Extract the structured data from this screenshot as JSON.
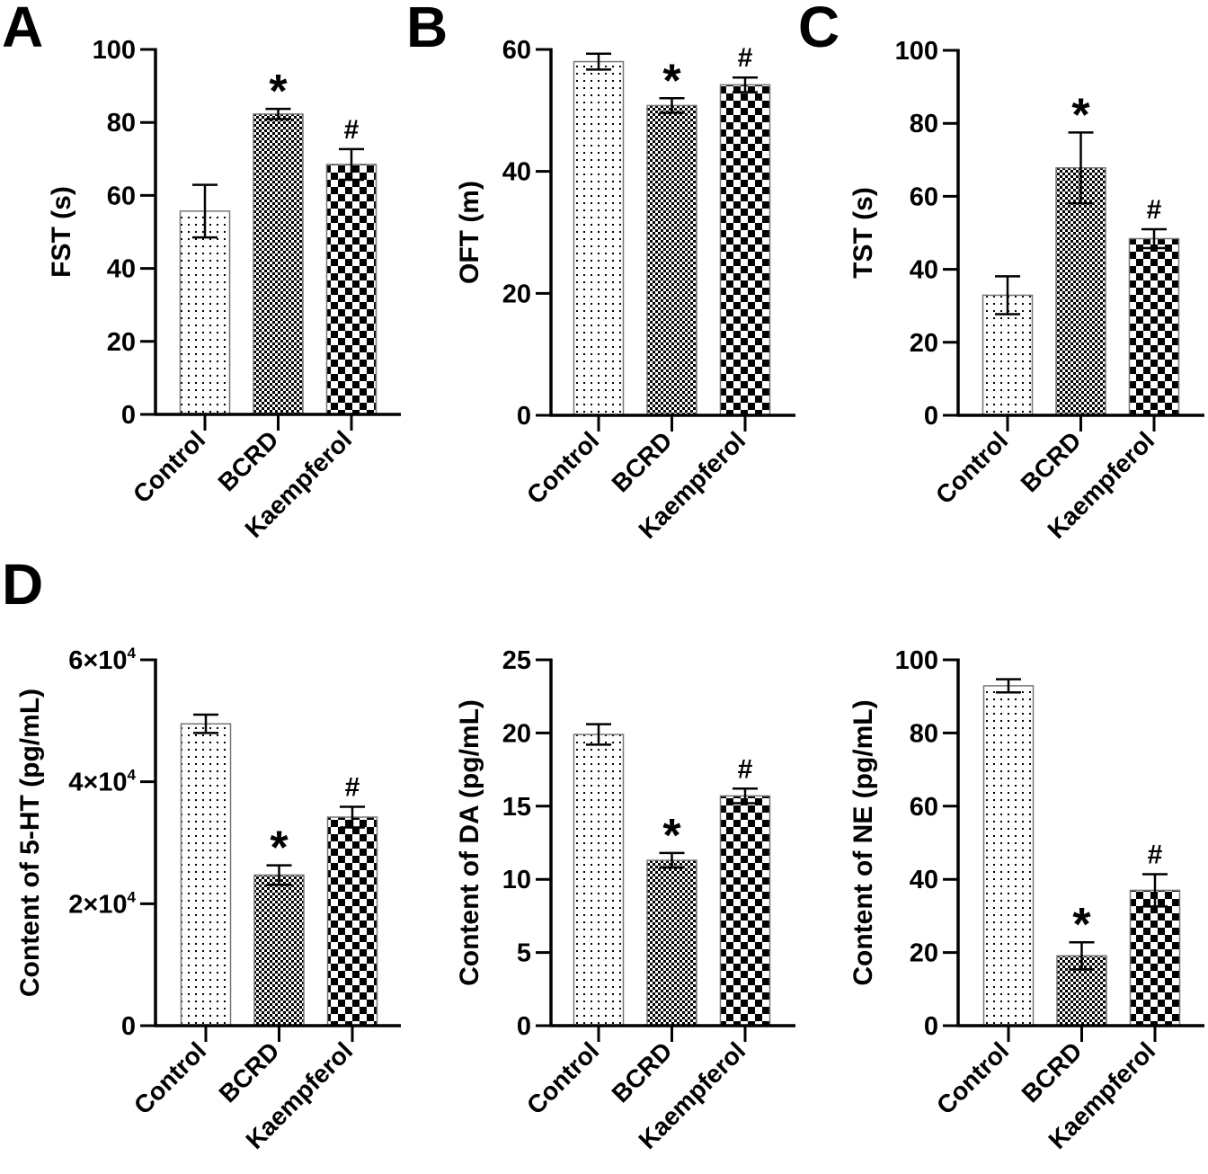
{
  "figure": {
    "panel_letters": [
      "A",
      "B",
      "C",
      "D"
    ]
  },
  "chart_data": [
    {
      "id": "A",
      "type": "bar",
      "title": "",
      "ylabel": "FST (s)",
      "xlabel": "",
      "categories": [
        "Control",
        "BCRD",
        "Kaempferol"
      ],
      "values": [
        55.7,
        82.3,
        68.5
      ],
      "error": [
        7.2,
        1.4,
        4.2
      ],
      "significance": [
        "",
        "*",
        "#"
      ],
      "patterns": [
        "dots",
        "fine-checker",
        "coarse-checker"
      ],
      "ylim": [
        0,
        100
      ],
      "yticks": [
        0,
        20,
        40,
        60,
        80,
        100
      ],
      "ytick_labels": [
        "0",
        "20",
        "40",
        "60",
        "80",
        "100"
      ],
      "grid": false
    },
    {
      "id": "B",
      "type": "bar",
      "title": "",
      "ylabel": "OFT (m)",
      "xlabel": "",
      "categories": [
        "Control",
        "BCRD",
        "Kaempferol"
      ],
      "values": [
        58.0,
        50.8,
        54.2
      ],
      "error": [
        1.3,
        1.2,
        1.2
      ],
      "significance": [
        "",
        "*",
        "#"
      ],
      "patterns": [
        "dots",
        "fine-checker",
        "coarse-checker"
      ],
      "ylim": [
        0,
        60
      ],
      "yticks": [
        0,
        20,
        40,
        60
      ],
      "ytick_labels": [
        "0",
        "20",
        "40",
        "60"
      ],
      "grid": false
    },
    {
      "id": "C",
      "type": "bar",
      "title": "",
      "ylabel": "TST (s)",
      "xlabel": "",
      "categories": [
        "Control",
        "BCRD",
        "Kaempferol"
      ],
      "values": [
        32.9,
        67.8,
        48.4
      ],
      "error": [
        5.2,
        9.7,
        2.6
      ],
      "significance": [
        "",
        "*",
        "#"
      ],
      "patterns": [
        "dots",
        "fine-checker",
        "coarse-checker"
      ],
      "ylim": [
        0,
        100
      ],
      "yticks": [
        0,
        20,
        40,
        60,
        80,
        100
      ],
      "ytick_labels": [
        "0",
        "20",
        "40",
        "60",
        "80",
        "100"
      ],
      "grid": false
    },
    {
      "id": "D-5HT",
      "type": "bar",
      "title": "",
      "ylabel": "Content of 5-HT (pg/mL)",
      "xlabel": "",
      "categories": [
        "Control",
        "BCRD",
        "Kaempferol"
      ],
      "values": [
        49500,
        24700,
        34200
      ],
      "error": [
        1500,
        1600,
        1700
      ],
      "significance": [
        "",
        "*",
        "#"
      ],
      "patterns": [
        "dots",
        "fine-checker",
        "coarse-checker"
      ],
      "ylim": [
        0,
        60000
      ],
      "yticks": [
        0,
        20000,
        40000,
        60000
      ],
      "ytick_labels": [
        {
          "base": "0",
          "sup": ""
        },
        {
          "base": "2×10",
          "sup": "4"
        },
        {
          "base": "4×10",
          "sup": "4"
        },
        {
          "base": "6×10",
          "sup": "4"
        }
      ],
      "grid": false
    },
    {
      "id": "D-DA",
      "type": "bar",
      "title": "",
      "ylabel": "Content of DA (pg/mL)",
      "xlabel": "",
      "categories": [
        "Control",
        "BCRD",
        "Kaempferol"
      ],
      "values": [
        19.9,
        11.3,
        15.7
      ],
      "error": [
        0.7,
        0.5,
        0.5
      ],
      "significance": [
        "",
        "*",
        "#"
      ],
      "patterns": [
        "dots",
        "fine-checker",
        "coarse-checker"
      ],
      "ylim": [
        0,
        25
      ],
      "yticks": [
        0,
        5,
        10,
        15,
        20,
        25
      ],
      "ytick_labels": [
        "0",
        "5",
        "10",
        "15",
        "20",
        "25"
      ],
      "grid": false
    },
    {
      "id": "D-NE",
      "type": "bar",
      "title": "",
      "ylabel": "Content of NE (pg/mL)",
      "xlabel": "",
      "categories": [
        "Control",
        "BCRD",
        "Kaempferol"
      ],
      "values": [
        92.9,
        19.1,
        37.0
      ],
      "error": [
        1.8,
        3.7,
        4.4
      ],
      "significance": [
        "",
        "*",
        "#"
      ],
      "patterns": [
        "dots",
        "fine-checker",
        "coarse-checker"
      ],
      "ylim": [
        0,
        100
      ],
      "yticks": [
        0,
        20,
        40,
        60,
        80,
        100
      ],
      "ytick_labels": [
        "0",
        "20",
        "40",
        "60",
        "80",
        "100"
      ],
      "grid": false
    }
  ]
}
